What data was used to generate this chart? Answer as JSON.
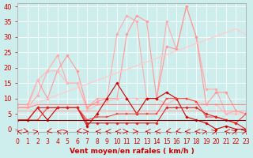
{
  "x": [
    0,
    1,
    2,
    3,
    4,
    5,
    6,
    7,
    8,
    9,
    10,
    11,
    12,
    13,
    14,
    15,
    16,
    17,
    18,
    19,
    20,
    21,
    22,
    23
  ],
  "series": [
    {
      "name": "rafales_max_light",
      "color": "#ffaaaa",
      "linewidth": 0.8,
      "marker": "D",
      "markersize": 1.8,
      "y": [
        7,
        7,
        11,
        19,
        24,
        15,
        15,
        7,
        10,
        10,
        31,
        37,
        35,
        10,
        10,
        35,
        26,
        40,
        30,
        13,
        13,
        5,
        6,
        5
      ]
    },
    {
      "name": "rafales_max",
      "color": "#ff9999",
      "linewidth": 0.8,
      "marker": "D",
      "markersize": 1.8,
      "y": [
        8,
        8,
        16,
        10,
        19,
        24,
        19,
        7,
        9,
        10,
        10,
        31,
        37,
        35,
        10,
        27,
        26,
        40,
        30,
        8,
        12,
        12,
        6,
        5
      ]
    },
    {
      "name": "linear_trend",
      "color": "#ffcccc",
      "linewidth": 1.0,
      "marker": null,
      "markersize": 0,
      "y": [
        7,
        7.5,
        8.7,
        9.9,
        11.1,
        12.3,
        13.5,
        14.7,
        15.9,
        17.1,
        18.3,
        19.5,
        20.7,
        21.9,
        23.1,
        24.3,
        25.5,
        26.7,
        27.9,
        29.1,
        30.3,
        31.5,
        32.7,
        30.7
      ]
    },
    {
      "name": "vent_moyen_med",
      "color": "#ffbbbb",
      "linewidth": 0.8,
      "marker": "D",
      "markersize": 1.8,
      "y": [
        7,
        7,
        16,
        19,
        19,
        15,
        15,
        6,
        8,
        9,
        10,
        10,
        10,
        10,
        10,
        8,
        10,
        10,
        9,
        8,
        8,
        5,
        5,
        5
      ]
    },
    {
      "name": "vent_max_line",
      "color": "#ff8888",
      "linewidth": 0.8,
      "marker": null,
      "markersize": 0,
      "y": [
        7,
        7,
        8,
        8,
        8,
        8,
        8,
        8,
        8,
        8,
        8,
        8,
        8,
        8,
        8,
        8,
        8,
        8,
        8,
        8,
        8,
        8,
        8,
        8
      ]
    },
    {
      "name": "vent_med_line",
      "color": "#ffaaaa",
      "linewidth": 0.8,
      "marker": null,
      "markersize": 0,
      "y": [
        6,
        6,
        6,
        6,
        6,
        6,
        6,
        6,
        6,
        6,
        6,
        6,
        6,
        6,
        6,
        6,
        6,
        6,
        6,
        6,
        6,
        6,
        6,
        6
      ]
    },
    {
      "name": "vent_moyen",
      "color": "#cc0000",
      "linewidth": 0.8,
      "marker": "D",
      "markersize": 1.8,
      "y": [
        3,
        3,
        7,
        3,
        7,
        7,
        7,
        1,
        5,
        10,
        15,
        10,
        5,
        10,
        10,
        12,
        10,
        4,
        3,
        2,
        0,
        1,
        0,
        0
      ]
    },
    {
      "name": "vent_min",
      "color": "#ff4444",
      "linewidth": 0.8,
      "marker": "s",
      "markersize": 1.8,
      "y": [
        3,
        3,
        3,
        7,
        7,
        7,
        7,
        3,
        4,
        4,
        5,
        5,
        5,
        5,
        5,
        10,
        10,
        10,
        9,
        4,
        4,
        3,
        2,
        5
      ]
    },
    {
      "name": "vent_flat_low",
      "color": "#dd2222",
      "linewidth": 0.8,
      "marker": "D",
      "markersize": 1.8,
      "y": [
        3,
        3,
        7,
        7,
        7,
        7,
        7,
        2,
        2,
        2,
        2,
        2,
        2,
        2,
        2,
        7,
        7,
        7,
        7,
        5,
        4,
        3,
        2,
        0
      ]
    },
    {
      "name": "vent_base_line",
      "color": "#880000",
      "linewidth": 0.8,
      "marker": null,
      "markersize": 0,
      "y": [
        3,
        3,
        3,
        3,
        3,
        3,
        3,
        3,
        3,
        3,
        3,
        3,
        3,
        3,
        3,
        3,
        3,
        3,
        3,
        3,
        3,
        3,
        3,
        3
      ]
    }
  ],
  "wind_arrows_x": [
    0,
    1,
    2,
    3,
    4,
    5,
    6,
    7,
    8,
    9,
    10,
    11,
    12,
    13,
    14,
    15,
    16,
    17,
    18,
    19,
    20,
    21,
    22,
    23
  ],
  "xlabel": "Vent moyen/en rafales ( km/h )",
  "xlim": [
    0,
    23
  ],
  "ylim": [
    -1,
    41
  ],
  "yticks": [
    0,
    5,
    10,
    15,
    20,
    25,
    30,
    35,
    40
  ],
  "xticks": [
    0,
    1,
    2,
    3,
    4,
    5,
    6,
    7,
    8,
    9,
    10,
    11,
    12,
    13,
    14,
    15,
    16,
    17,
    18,
    19,
    20,
    21,
    22,
    23
  ],
  "background_color": "#ceeeed",
  "grid_color": "#ffffff",
  "tick_color": "#cc0000",
  "label_color": "#cc0000",
  "figsize": [
    3.2,
    2.0
  ],
  "dpi": 100
}
